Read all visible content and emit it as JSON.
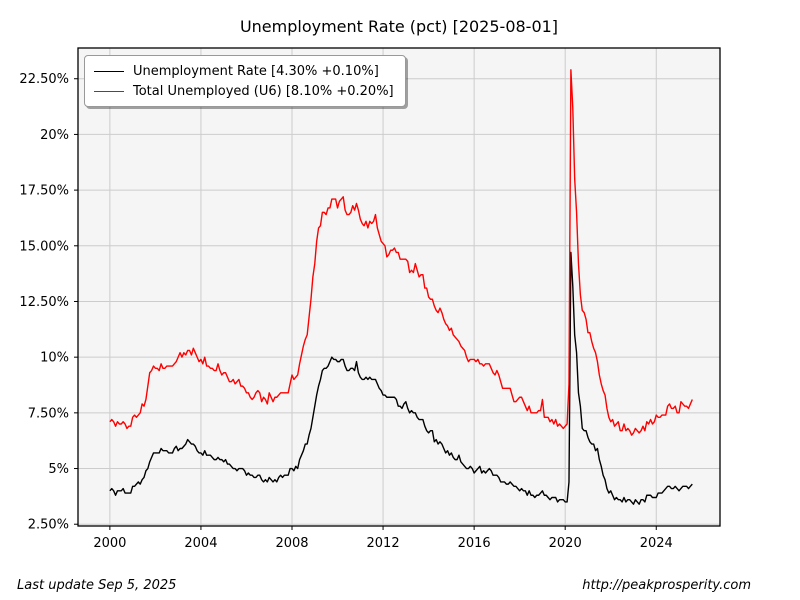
{
  "page": {
    "title": "Unemployment Rate (pct) [2025-08-01]"
  },
  "footer": {
    "last_update": "Last update Sep  5, 2025",
    "url": "http://peakprosperity.com"
  },
  "colors": {
    "page_background": "#ffffff",
    "plot_background": "#f5f5f5",
    "grid": "#cccccc",
    "spine": "#000000",
    "tick_label": "#000000",
    "u3_line": "#000000",
    "u6_line": "#ff0000",
    "legend_border": "#999999"
  },
  "chart_data": {
    "type": "line",
    "title": "Unemployment Rate (pct) [2025-08-01]",
    "xlabel": "",
    "ylabel": "",
    "grid": true,
    "legend_position": "upper-left",
    "x_start_year": 2000,
    "x_frequency": "monthly",
    "x_end": "2025-08",
    "xlim": [
      1998.6,
      2026.8
    ],
    "ylim": [
      2.42,
      23.88
    ],
    "x_ticks": [
      2000,
      2004,
      2008,
      2012,
      2016,
      2020,
      2024
    ],
    "x_tick_labels": [
      "2000",
      "2004",
      "2008",
      "2012",
      "2016",
      "2020",
      "2024"
    ],
    "y_ticks": [
      2.5,
      5,
      7.5,
      10,
      12.5,
      15,
      17.5,
      20,
      22.5
    ],
    "y_tick_labels": [
      "2.50%",
      "5%",
      "7.50%",
      "10%",
      "12.50%",
      "15.00%",
      "17.50%",
      "20%",
      "22.50%"
    ],
    "series": [
      {
        "name": "Unemployment Rate [4.30% +0.10%]",
        "color": "#000000",
        "values": [
          4.0,
          4.1,
          4.0,
          3.8,
          4.0,
          4.0,
          4.0,
          4.1,
          3.9,
          3.9,
          3.9,
          3.9,
          4.2,
          4.2,
          4.3,
          4.4,
          4.3,
          4.5,
          4.6,
          4.9,
          5.0,
          5.3,
          5.5,
          5.7,
          5.7,
          5.7,
          5.7,
          5.9,
          5.8,
          5.8,
          5.8,
          5.7,
          5.7,
          5.7,
          5.9,
          6.0,
          5.8,
          5.9,
          5.9,
          6.0,
          6.1,
          6.3,
          6.2,
          6.1,
          6.1,
          6.0,
          5.8,
          5.7,
          5.7,
          5.6,
          5.8,
          5.6,
          5.6,
          5.6,
          5.5,
          5.4,
          5.4,
          5.5,
          5.4,
          5.4,
          5.3,
          5.4,
          5.2,
          5.2,
          5.1,
          5.0,
          5.0,
          4.9,
          5.0,
          5.0,
          5.0,
          4.9,
          4.7,
          4.8,
          4.7,
          4.7,
          4.6,
          4.6,
          4.7,
          4.7,
          4.5,
          4.4,
          4.5,
          4.4,
          4.6,
          4.5,
          4.4,
          4.5,
          4.4,
          4.6,
          4.7,
          4.6,
          4.7,
          4.7,
          4.7,
          5.0,
          5.0,
          4.9,
          5.1,
          5.0,
          5.4,
          5.6,
          5.8,
          6.1,
          6.1,
          6.5,
          6.8,
          7.3,
          7.8,
          8.3,
          8.7,
          9.0,
          9.4,
          9.5,
          9.5,
          9.6,
          9.8,
          10.0,
          9.9,
          9.9,
          9.8,
          9.8,
          9.9,
          9.9,
          9.6,
          9.4,
          9.4,
          9.5,
          9.5,
          9.4,
          9.8,
          9.3,
          9.1,
          9.0,
          9.0,
          9.1,
          9.0,
          9.1,
          9.0,
          9.0,
          9.0,
          8.8,
          8.6,
          8.5,
          8.3,
          8.3,
          8.2,
          8.2,
          8.2,
          8.2,
          8.2,
          8.1,
          7.8,
          7.8,
          7.7,
          7.9,
          8.0,
          7.7,
          7.5,
          7.6,
          7.5,
          7.5,
          7.3,
          7.2,
          7.2,
          7.2,
          6.9,
          6.7,
          6.6,
          6.7,
          6.7,
          6.2,
          6.3,
          6.1,
          6.2,
          6.1,
          5.9,
          5.7,
          5.8,
          5.6,
          5.7,
          5.5,
          5.4,
          5.4,
          5.6,
          5.3,
          5.2,
          5.1,
          5.0,
          5.0,
          5.1,
          5.0,
          4.8,
          4.9,
          5.0,
          5.1,
          4.8,
          4.9,
          4.8,
          4.9,
          5.0,
          4.9,
          4.7,
          4.7,
          4.7,
          4.6,
          4.4,
          4.4,
          4.4,
          4.3,
          4.3,
          4.4,
          4.3,
          4.2,
          4.2,
          4.1,
          4.0,
          4.1,
          4.0,
          4.0,
          3.8,
          4.0,
          3.8,
          3.8,
          3.7,
          3.8,
          3.8,
          3.9,
          4.0,
          3.8,
          3.8,
          3.7,
          3.6,
          3.7,
          3.7,
          3.7,
          3.5,
          3.6,
          3.6,
          3.6,
          3.5,
          3.5,
          4.4,
          14.7,
          13.2,
          11.0,
          10.2,
          8.4,
          7.8,
          6.8,
          6.7,
          6.7,
          6.4,
          6.2,
          6.1,
          6.1,
          5.8,
          5.9,
          5.4,
          5.1,
          4.7,
          4.5,
          4.1,
          3.9,
          4.0,
          3.8,
          3.6,
          3.7,
          3.6,
          3.6,
          3.5,
          3.7,
          3.5,
          3.6,
          3.6,
          3.5,
          3.4,
          3.6,
          3.5,
          3.4,
          3.6,
          3.6,
          3.5,
          3.8,
          3.8,
          3.8,
          3.7,
          3.7,
          3.7,
          3.9,
          3.9,
          3.9,
          4.0,
          4.1,
          4.2,
          4.2,
          4.1,
          4.1,
          4.2,
          4.1,
          4.0,
          4.1,
          4.2,
          4.2,
          4.2,
          4.1,
          4.2,
          4.3
        ]
      },
      {
        "name": "Total Unemployed (U6) [8.10% +0.20%]",
        "color": "#ff0000",
        "values": [
          7.1,
          7.2,
          7.1,
          6.9,
          7.1,
          7.0,
          7.0,
          7.1,
          7.0,
          6.8,
          6.9,
          6.9,
          7.3,
          7.4,
          7.3,
          7.4,
          7.5,
          7.9,
          7.8,
          8.1,
          8.7,
          9.3,
          9.4,
          9.6,
          9.5,
          9.5,
          9.4,
          9.7,
          9.5,
          9.5,
          9.6,
          9.6,
          9.6,
          9.6,
          9.7,
          9.8,
          10.0,
          10.2,
          10.0,
          10.2,
          10.1,
          10.3,
          10.3,
          10.1,
          10.4,
          10.2,
          10.0,
          9.8,
          9.9,
          9.7,
          10.0,
          9.6,
          9.6,
          9.5,
          9.5,
          9.4,
          9.4,
          9.7,
          9.4,
          9.2,
          9.3,
          9.3,
          9.1,
          8.9,
          8.9,
          9.0,
          8.8,
          8.9,
          9.0,
          8.7,
          8.7,
          8.6,
          8.4,
          8.4,
          8.2,
          8.1,
          8.2,
          8.4,
          8.5,
          8.4,
          8.0,
          8.2,
          8.1,
          7.9,
          8.4,
          8.2,
          8.0,
          8.2,
          8.2,
          8.3,
          8.4,
          8.4,
          8.4,
          8.4,
          8.4,
          8.8,
          9.2,
          9.0,
          9.1,
          9.2,
          9.7,
          10.1,
          10.5,
          10.8,
          11.0,
          11.8,
          12.6,
          13.6,
          14.2,
          15.2,
          15.8,
          15.9,
          16.5,
          16.5,
          16.4,
          16.7,
          16.7,
          17.1,
          17.1,
          17.1,
          16.7,
          17.0,
          17.1,
          17.2,
          16.6,
          16.4,
          16.4,
          16.5,
          16.8,
          16.6,
          16.9,
          16.6,
          16.2,
          16.0,
          15.9,
          16.1,
          15.8,
          16.1,
          16.0,
          16.1,
          16.4,
          15.8,
          15.5,
          15.2,
          15.1,
          15.0,
          14.5,
          14.6,
          14.8,
          14.8,
          14.9,
          14.7,
          14.7,
          14.4,
          14.4,
          14.4,
          14.4,
          14.3,
          13.8,
          13.9,
          13.8,
          14.2,
          13.9,
          13.6,
          13.7,
          13.7,
          13.1,
          13.1,
          12.7,
          12.6,
          12.6,
          12.3,
          12.1,
          12.0,
          12.2,
          12.0,
          11.7,
          11.5,
          11.4,
          11.2,
          11.3,
          11.0,
          10.9,
          10.8,
          10.7,
          10.5,
          10.4,
          10.3,
          10.0,
          9.8,
          9.9,
          9.9,
          9.9,
          9.8,
          9.9,
          9.7,
          9.7,
          9.6,
          9.7,
          9.7,
          9.7,
          9.5,
          9.3,
          9.2,
          9.4,
          9.2,
          8.9,
          8.6,
          8.6,
          8.6,
          8.6,
          8.6,
          8.3,
          8.0,
          8.0,
          8.1,
          8.2,
          8.2,
          8.0,
          7.8,
          7.6,
          7.8,
          7.5,
          7.5,
          7.5,
          7.5,
          7.6,
          7.6,
          8.1,
          7.3,
          7.3,
          7.3,
          7.1,
          7.2,
          7.0,
          7.2,
          6.9,
          7.0,
          6.9,
          6.8,
          6.9,
          7.0,
          8.8,
          22.9,
          21.2,
          18.0,
          16.5,
          14.2,
          12.8,
          12.1,
          12.0,
          11.7,
          11.1,
          11.1,
          10.7,
          10.4,
          10.2,
          9.8,
          9.2,
          8.8,
          8.5,
          8.3,
          7.7,
          7.3,
          7.1,
          7.2,
          6.9,
          7.0,
          7.1,
          6.7,
          6.7,
          7.0,
          6.7,
          6.8,
          6.7,
          6.5,
          6.6,
          6.8,
          6.7,
          6.6,
          6.7,
          6.9,
          6.7,
          7.1,
          7.0,
          7.2,
          7.0,
          7.1,
          7.4,
          7.3,
          7.3,
          7.4,
          7.4,
          7.4,
          7.8,
          7.9,
          7.7,
          7.7,
          7.8,
          7.5,
          7.5,
          8.0,
          7.9,
          7.8,
          7.8,
          7.7,
          7.9,
          8.1
        ]
      }
    ]
  }
}
